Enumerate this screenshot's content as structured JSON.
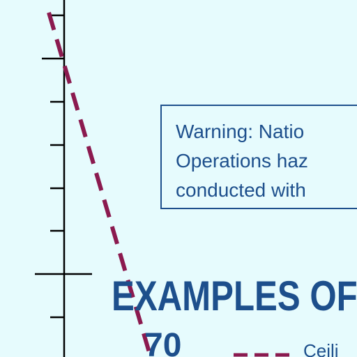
{
  "chart_data": {
    "type": "line",
    "title": "",
    "xlabel": "",
    "ylabel": "",
    "y_tick_labels": [
      "70"
    ],
    "series": [
      {
        "name": "Ceili",
        "style": "dashed",
        "color": "#8b1a4f"
      }
    ]
  },
  "warning_box": {
    "lines": [
      "Warning: Natio",
      "Operations haz",
      "conducted with"
    ]
  },
  "heading": {
    "text": "EXAMPLES OF"
  },
  "legend": {
    "items": [
      {
        "label": "Ceili",
        "color": "#8b1a4f",
        "style": "dashed"
      }
    ]
  },
  "colors": {
    "background": "#e6fbfd",
    "text": "#1d4f8c",
    "axis": "#000000",
    "series_line": "#8b1a4f"
  }
}
